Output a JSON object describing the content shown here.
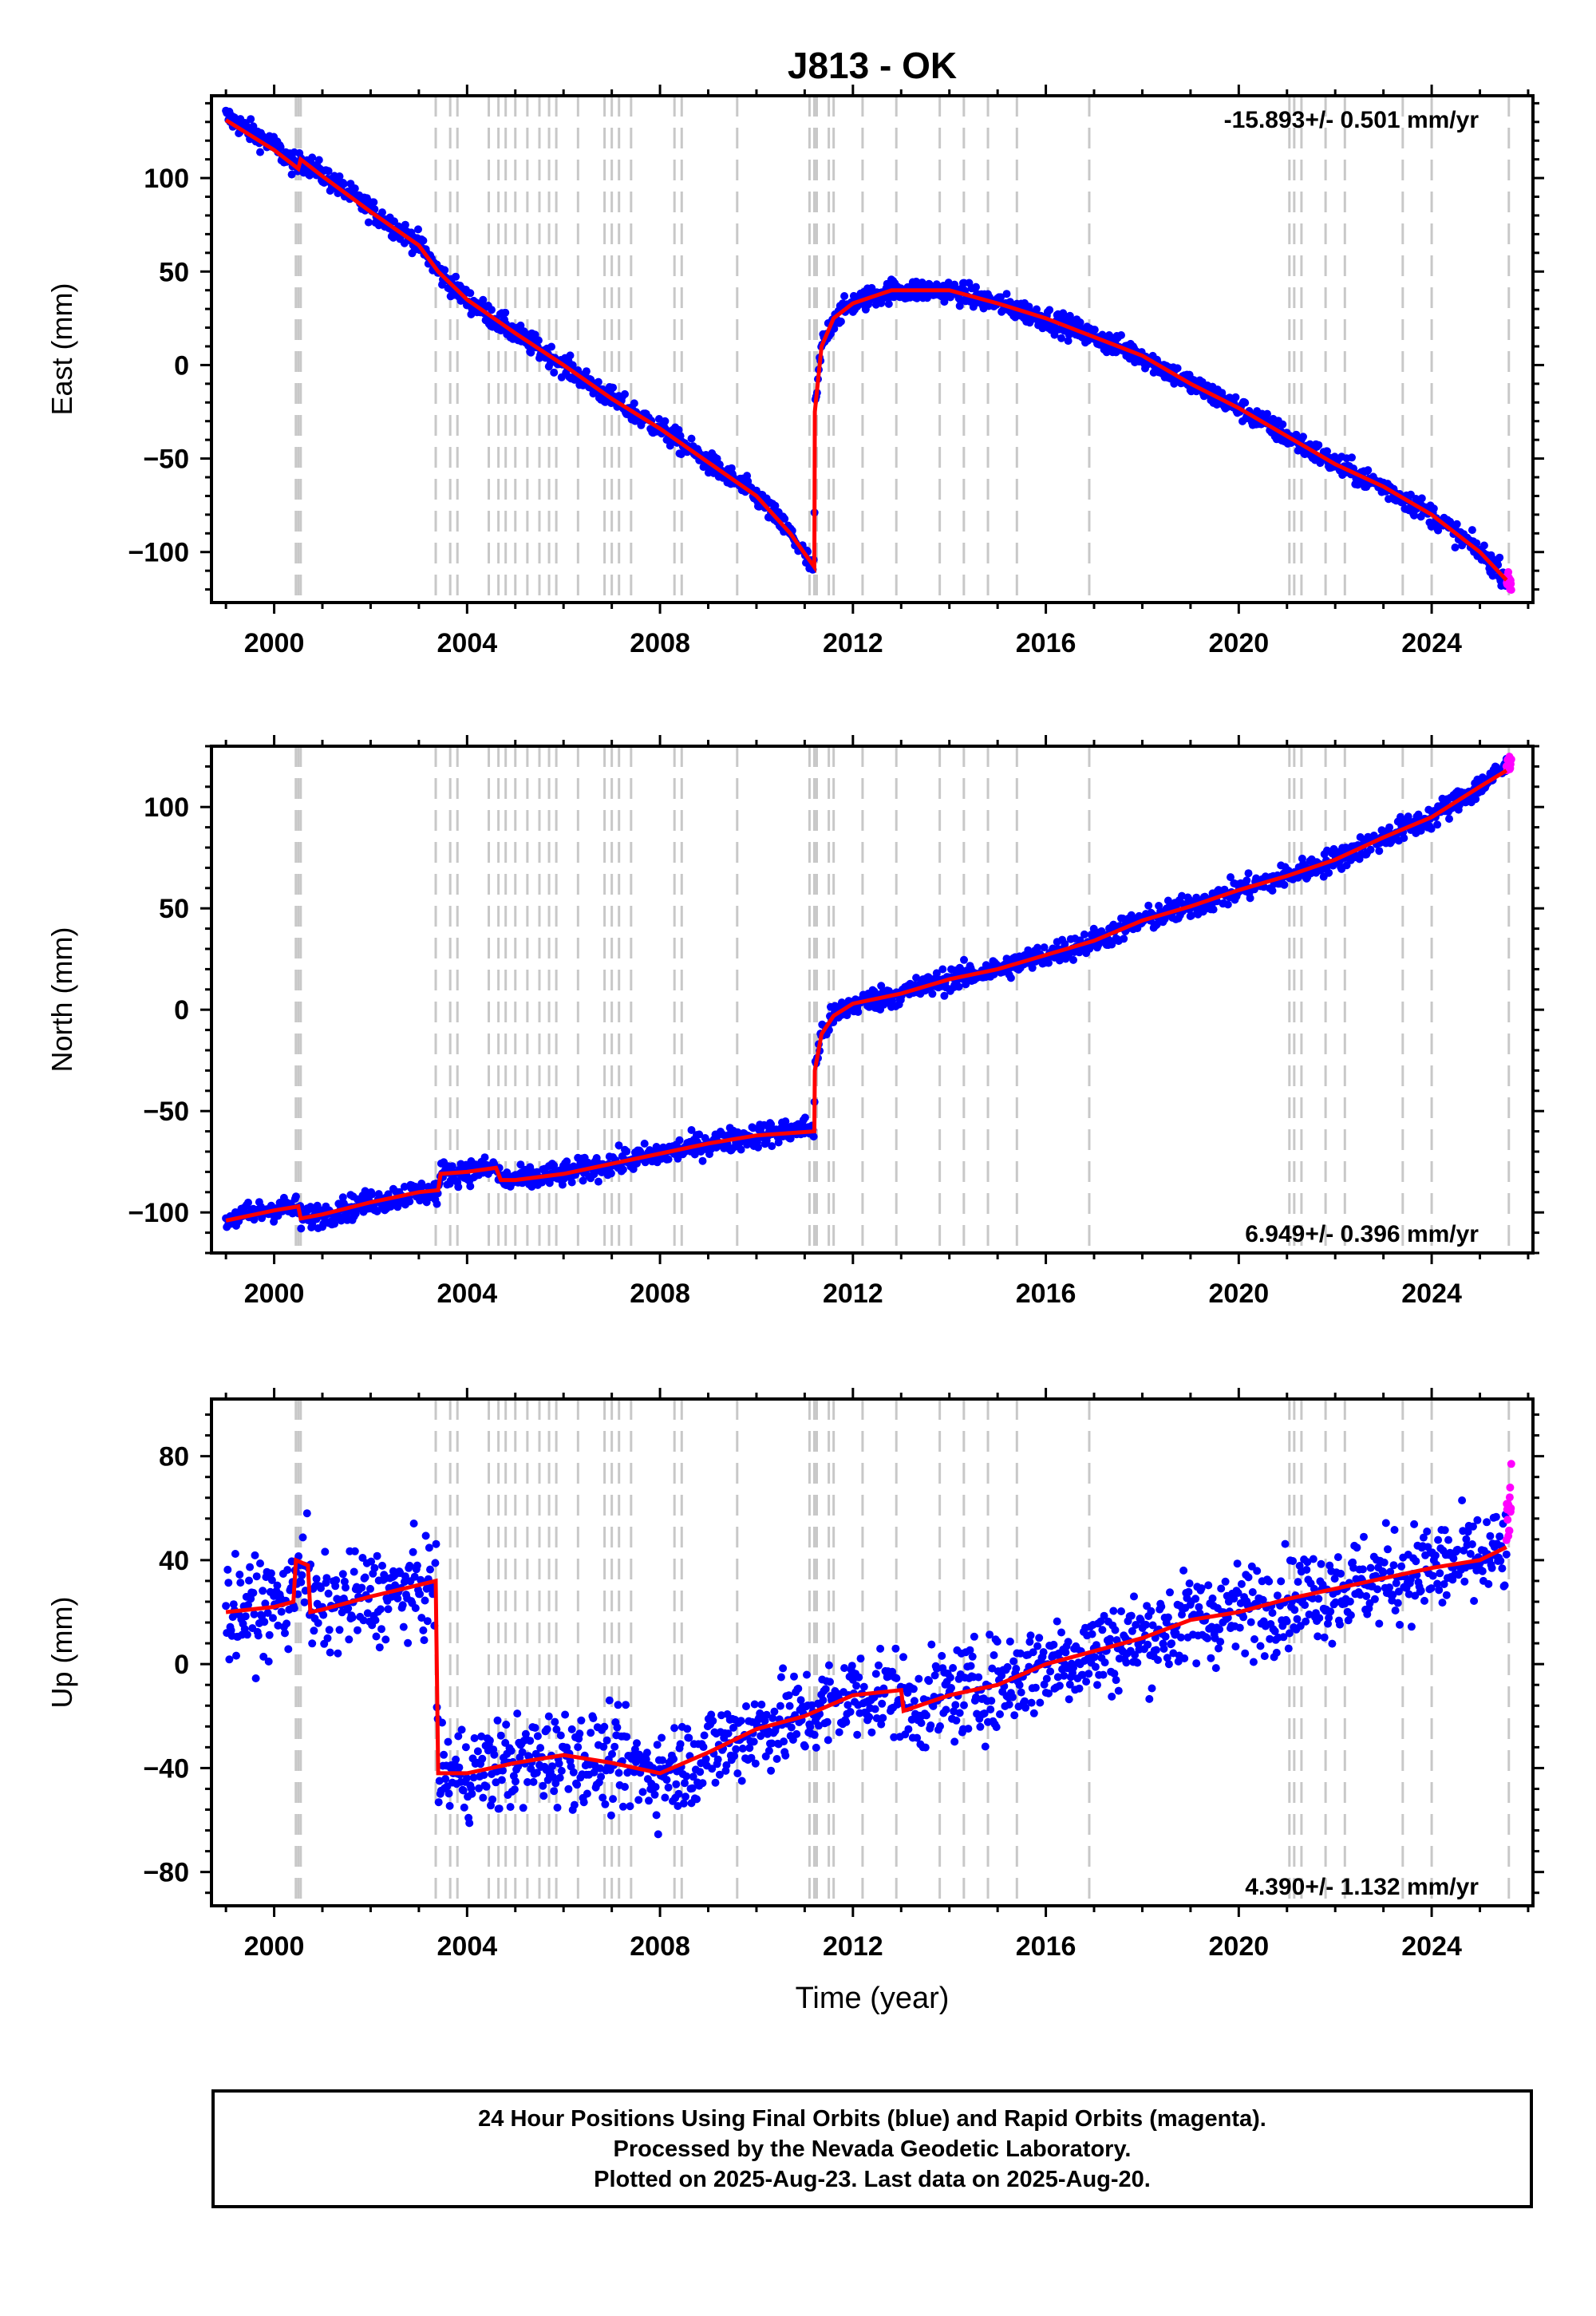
{
  "page_title": "J813 - OK",
  "colors": {
    "final_orbit_points": "#0000ff",
    "rapid_orbit_points": "#ff00ff",
    "model_line": "#ff0000",
    "event_lines": "#c8c8c8"
  },
  "event_years": [
    2000.45,
    2000.5,
    2000.55,
    2003.35,
    2003.65,
    2003.8,
    2004.45,
    2004.65,
    2004.8,
    2005.0,
    2005.25,
    2005.5,
    2005.7,
    2005.85,
    2006.3,
    2006.85,
    2007.0,
    2007.15,
    2007.4,
    2008.3,
    2008.45,
    2009.6,
    2011.1,
    2011.2,
    2011.25,
    2011.5,
    2011.6,
    2012.2,
    2012.9,
    2013.8,
    2014.3,
    2014.8,
    2015.4,
    2016.9,
    2021.05,
    2021.15,
    2021.3,
    2021.8,
    2022.2,
    2023.4,
    2024.0,
    2025.6
  ],
  "chart_data": [
    {
      "type": "scatter",
      "panel": "east",
      "title": "J813 - OK",
      "ylabel": "East (mm)",
      "xlabel": "",
      "xlim": [
        1998.7,
        2026.1
      ],
      "ylim": [
        -127,
        144
      ],
      "xticks": [
        2000,
        2004,
        2008,
        2012,
        2016,
        2020,
        2024
      ],
      "xtick_labels": [
        "2000",
        "2004",
        "2008",
        "2012",
        "2016",
        "2020",
        "2024"
      ],
      "yticks": [
        -100,
        -50,
        0,
        50,
        100
      ],
      "ytick_labels": [
        "−100",
        "−50",
        "0",
        "50",
        "100"
      ],
      "rate_label": "-15.893+/- 0.501 mm/yr",
      "rate_position": "top-right",
      "series": [
        {
          "name": "Final Orbits",
          "color": "#0000ff",
          "noise": 3.0,
          "x": [
            1999.0,
            2000.0,
            2000.5,
            2000.55,
            2001.0,
            2002.0,
            2003.0,
            2003.4,
            2004.0,
            2005.0,
            2006.0,
            2007.0,
            2008.0,
            2009.0,
            2010.0,
            2010.7,
            2011.2,
            2011.21,
            2011.35,
            2011.6,
            2012.0,
            2012.8,
            2013.5,
            2014.0,
            2015.0,
            2016.0,
            2017.0,
            2018.0,
            2019.0,
            2020.0,
            2021.0,
            2022.0,
            2023.0,
            2024.0,
            2025.0,
            2025.55
          ],
          "y": [
            133,
            117,
            105,
            110,
            102,
            83,
            65,
            50,
            35,
            17,
            0,
            -18,
            -34,
            -52,
            -70,
            -90,
            -110,
            -25,
            10,
            25,
            33,
            40,
            40,
            40,
            33,
            25,
            15,
            5,
            -10,
            -23,
            -38,
            -53,
            -65,
            -80,
            -100,
            -113
          ]
        },
        {
          "name": "Rapid Orbits",
          "color": "#ff00ff",
          "noise": 2.0,
          "x": [
            2025.55,
            2025.65
          ],
          "y": [
            -114,
            -118
          ]
        }
      ],
      "model": {
        "color": "#ff0000",
        "x": [
          1999.0,
          2000.0,
          2000.5,
          2000.55,
          2001.0,
          2002.0,
          2003.0,
          2003.4,
          2004.0,
          2005.0,
          2006.0,
          2007.0,
          2008.0,
          2009.0,
          2010.0,
          2010.7,
          2011.2,
          2011.21,
          2011.35,
          2011.6,
          2012.0,
          2012.8,
          2013.5,
          2014.0,
          2015.0,
          2016.0,
          2017.0,
          2018.0,
          2019.0,
          2020.0,
          2021.0,
          2022.0,
          2023.0,
          2024.0,
          2025.0,
          2025.55
        ],
        "y": [
          131,
          115,
          105,
          110,
          101,
          82,
          64,
          50,
          35,
          17,
          0,
          -18,
          -34,
          -52,
          -70,
          -90,
          -108,
          -25,
          10,
          25,
          33,
          40,
          40,
          40,
          33,
          25,
          15,
          5,
          -10,
          -23,
          -38,
          -53,
          -65,
          -80,
          -100,
          -115
        ]
      }
    },
    {
      "type": "scatter",
      "panel": "north",
      "title": "",
      "ylabel": "North (mm)",
      "xlabel": "",
      "xlim": [
        1998.7,
        2026.1
      ],
      "ylim": [
        -120,
        130
      ],
      "xticks": [
        2000,
        2004,
        2008,
        2012,
        2016,
        2020,
        2024
      ],
      "xtick_labels": [
        "2000",
        "2004",
        "2008",
        "2012",
        "2016",
        "2020",
        "2024"
      ],
      "yticks": [
        -100,
        -50,
        0,
        50,
        100
      ],
      "ytick_labels": [
        "−100",
        "−50",
        "0",
        "50",
        "100"
      ],
      "rate_label": "6.949+/- 0.396 mm/yr",
      "rate_position": "bottom-right",
      "series": [
        {
          "name": "Final Orbits",
          "color": "#0000ff",
          "noise": 3.0,
          "x": [
            1999.0,
            2000.0,
            2000.5,
            2000.55,
            2001.0,
            2002.0,
            2003.0,
            2003.4,
            2003.45,
            2004.0,
            2004.6,
            2004.7,
            2005.0,
            2006.0,
            2007.0,
            2008.0,
            2009.0,
            2010.0,
            2011.2,
            2011.21,
            2011.35,
            2011.6,
            2012.0,
            2013.0,
            2014.0,
            2015.0,
            2016.0,
            2017.0,
            2018.0,
            2019.0,
            2020.0,
            2021.0,
            2022.0,
            2023.0,
            2024.0,
            2025.0,
            2025.55
          ],
          "y": [
            -104,
            -98,
            -98,
            -103,
            -101,
            -95,
            -90,
            -90,
            -81,
            -80,
            -78,
            -84,
            -84,
            -81,
            -76,
            -71,
            -66,
            -62,
            -58,
            -30,
            -12,
            -3,
            3,
            8,
            15,
            20,
            27,
            34,
            44,
            51,
            59,
            66,
            74,
            85,
            95,
            110,
            120
          ]
        },
        {
          "name": "Rapid Orbits",
          "color": "#ff00ff",
          "noise": 2.0,
          "x": [
            2025.55,
            2025.65
          ],
          "y": [
            119,
            124
          ]
        }
      ],
      "model": {
        "color": "#ff0000",
        "x": [
          1999.0,
          2000.0,
          2000.5,
          2000.55,
          2001.0,
          2002.0,
          2003.0,
          2003.4,
          2003.45,
          2004.0,
          2004.6,
          2004.7,
          2005.0,
          2006.0,
          2007.0,
          2008.0,
          2009.0,
          2010.0,
          2011.2,
          2011.21,
          2011.35,
          2011.6,
          2012.0,
          2013.0,
          2014.0,
          2015.0,
          2016.0,
          2017.0,
          2018.0,
          2019.0,
          2020.0,
          2021.0,
          2022.0,
          2023.0,
          2024.0,
          2025.0,
          2025.55
        ],
        "y": [
          -104,
          -99,
          -97,
          -103,
          -101,
          -95,
          -90,
          -89,
          -81,
          -80,
          -78,
          -84,
          -84,
          -81,
          -76,
          -71,
          -66,
          -62,
          -60,
          -30,
          -12,
          -3,
          3,
          8,
          15,
          20,
          27,
          34,
          44,
          51,
          59,
          66,
          74,
          85,
          95,
          110,
          118
        ]
      }
    },
    {
      "type": "scatter",
      "panel": "up",
      "title": "",
      "ylabel": "Up (mm)",
      "xlabel": "Time (year)",
      "xlim": [
        1998.7,
        2026.1
      ],
      "ylim": [
        -93,
        102
      ],
      "xticks": [
        2000,
        2004,
        2008,
        2012,
        2016,
        2020,
        2024
      ],
      "xtick_labels": [
        "2000",
        "2004",
        "2008",
        "2012",
        "2016",
        "2020",
        "2024"
      ],
      "yticks": [
        -80,
        -40,
        0,
        40,
        80
      ],
      "ytick_labels": [
        "−80",
        "−40",
        "0",
        "40",
        "80"
      ],
      "rate_label": "4.390+/- 1.132 mm/yr",
      "rate_position": "bottom-right",
      "series": [
        {
          "name": "Final Orbits",
          "color": "#0000ff",
          "noise": 9.0,
          "x": [
            1999.0,
            2000.0,
            2000.4,
            2000.45,
            2000.7,
            2000.75,
            2001.0,
            2002.0,
            2003.35,
            2003.4,
            2004.0,
            2005.0,
            2006.0,
            2007.0,
            2008.0,
            2009.0,
            2010.0,
            2011.0,
            2012.0,
            2013.0,
            2013.05,
            2014.0,
            2015.0,
            2016.0,
            2017.0,
            2018.0,
            2019.0,
            2020.0,
            2021.0,
            2022.0,
            2023.0,
            2024.0,
            2025.0,
            2025.55
          ],
          "y": [
            20,
            22,
            24,
            40,
            38,
            20,
            21,
            26,
            30,
            -42,
            -42,
            -38,
            -35,
            -38,
            -42,
            -34,
            -25,
            -20,
            -12,
            -10,
            -18,
            -12,
            -8,
            0,
            5,
            10,
            17,
            20,
            25,
            29,
            33,
            37,
            40,
            43
          ]
        },
        {
          "name": "Rapid Orbits",
          "color": "#ff00ff",
          "noise": 6.0,
          "x": [
            2025.55,
            2025.65
          ],
          "y": [
            50,
            65
          ]
        }
      ],
      "model": {
        "color": "#ff0000",
        "x": [
          1999.0,
          2000.0,
          2000.4,
          2000.45,
          2000.7,
          2000.75,
          2001.0,
          2002.0,
          2003.35,
          2003.4,
          2004.0,
          2005.0,
          2006.0,
          2007.0,
          2008.0,
          2009.0,
          2010.0,
          2011.0,
          2012.0,
          2013.0,
          2013.05,
          2014.0,
          2015.0,
          2016.0,
          2017.0,
          2018.0,
          2019.0,
          2020.0,
          2021.0,
          2022.0,
          2023.0,
          2024.0,
          2025.0,
          2025.55
        ],
        "y": [
          20,
          22,
          24,
          40,
          38,
          20,
          21,
          26,
          32,
          -42,
          -42,
          -38,
          -35,
          -38,
          -42,
          -34,
          -25,
          -20,
          -12,
          -10,
          -18,
          -12,
          -8,
          0,
          5,
          10,
          17,
          20,
          25,
          29,
          33,
          37,
          40,
          45
        ]
      }
    }
  ],
  "footer": {
    "line1": "24 Hour Positions Using Final Orbits (blue) and Rapid Orbits (magenta).",
    "line2": "Processed by the Nevada Geodetic Laboratory.",
    "line3": "Plotted on 2025-Aug-23. Last data on 2025-Aug-20."
  }
}
